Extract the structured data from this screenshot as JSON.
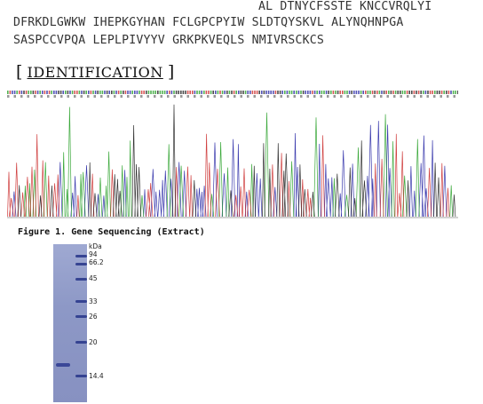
{
  "sequence": {
    "lines": [
      "AL DTNYCFSSTE KNCCVRQLYI",
      "DFRKDLGWKW IHEPKGYHAN FCLGPCPYIW SLDTQYSKVL ALYNQHNPGA",
      "SASPCCVPQA LEPLPIVYYV GRKPKVEQLS NMIVRSCKCS"
    ]
  },
  "section": {
    "open": "[",
    "title": "IDENTIFICATION",
    "close": "]"
  },
  "figure": {
    "caption": "Figure 1. Gene Sequencing (Extract)"
  },
  "chromatogram": {
    "trace_colors": [
      "#1a1aa0",
      "#1a9a1a",
      "#c81e1e",
      "#111111"
    ]
  },
  "gel": {
    "unit": "kDa",
    "markers": [
      {
        "label": "94",
        "value": 94
      },
      {
        "label": "66.2",
        "value": 66.2
      },
      {
        "label": "45",
        "value": 45
      },
      {
        "label": "33",
        "value": 33
      },
      {
        "label": "26",
        "value": 26
      },
      {
        "label": "20",
        "value": 20
      },
      {
        "label": "14.4",
        "value": 14.4
      }
    ]
  }
}
